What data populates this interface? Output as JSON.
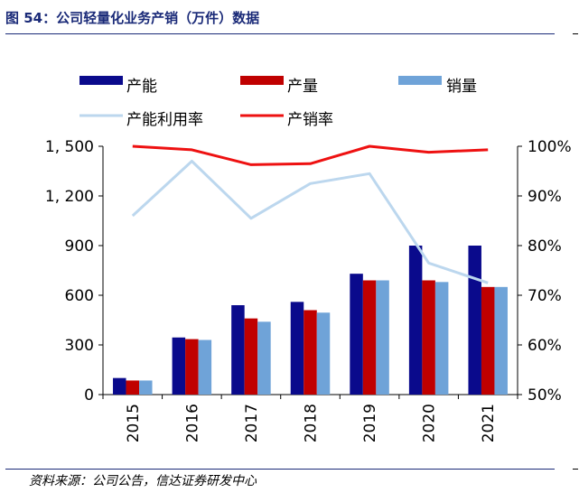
{
  "header": {
    "title": "图 54：公司轻量化业务产销（万件）数据"
  },
  "footer": {
    "source": "资料来源：公司公告，信达证券研发中心"
  },
  "chart_data": {
    "type": "bar",
    "categories": [
      "2015",
      "2016",
      "2017",
      "2018",
      "2019",
      "2020",
      "2021"
    ],
    "series": [
      {
        "name": "产能",
        "type": "bar",
        "axis": "left",
        "color": "#0a0a8c",
        "values": [
          100,
          345,
          540,
          560,
          730,
          900,
          900
        ]
      },
      {
        "name": "产量",
        "type": "bar",
        "axis": "left",
        "color": "#c00000",
        "values": [
          85,
          335,
          460,
          510,
          690,
          690,
          650
        ]
      },
      {
        "name": "销量",
        "type": "bar",
        "axis": "left",
        "color": "#6fa3d8",
        "values": [
          85,
          330,
          440,
          495,
          690,
          680,
          650
        ]
      },
      {
        "name": "产能利用率",
        "type": "line",
        "axis": "right",
        "color": "#bcd7ee",
        "values": [
          86,
          97,
          85.5,
          92.5,
          94.5,
          76.5,
          72.5
        ]
      },
      {
        "name": "产销率",
        "type": "line",
        "axis": "right",
        "color": "#ee1111",
        "values": [
          100,
          99.3,
          96.3,
          96.5,
          100,
          98.8,
          99.3
        ]
      }
    ],
    "y_left": {
      "min": 0,
      "max": 1500,
      "tick_values": [
        0,
        300,
        600,
        900,
        1200,
        1500
      ],
      "tick_labels": [
        "0",
        "300",
        "600",
        "900",
        "1, 200",
        "1, 500"
      ]
    },
    "y_right": {
      "min": 50,
      "max": 100,
      "tick_values": [
        50,
        60,
        70,
        80,
        90,
        100
      ],
      "tick_labels": [
        "50%",
        "60%",
        "70%",
        "80%",
        "90%",
        "100%"
      ]
    },
    "legend_position": "top",
    "xlabel": "",
    "ylabel": ""
  }
}
